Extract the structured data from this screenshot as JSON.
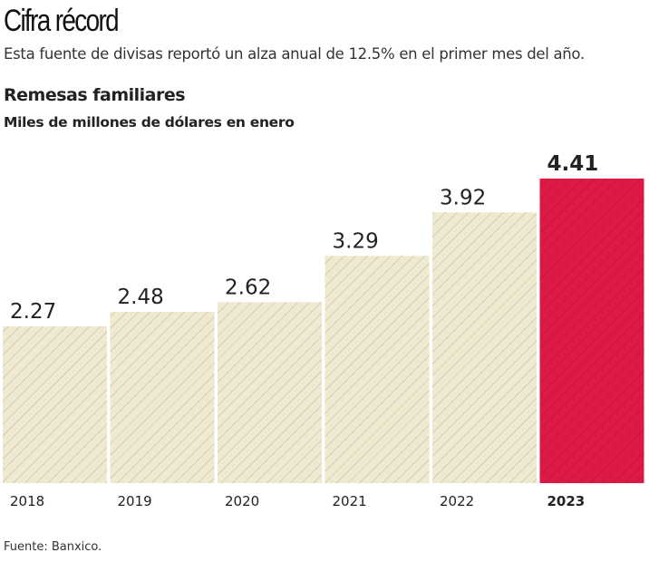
{
  "header": {
    "title": "Cifra récord",
    "subtitle": "Esta fuente de divisas reportó un alza anual de 12.5% en el primer mes del año."
  },
  "chart_data": {
    "type": "bar",
    "title": "Remesas familiares",
    "subtitle": "Miles de millones de dólares en enero",
    "categories": [
      "2018",
      "2019",
      "2020",
      "2021",
      "2022",
      "2023"
    ],
    "values": [
      2.27,
      2.48,
      2.62,
      3.29,
      3.92,
      4.41
    ],
    "value_labels": [
      "2.27",
      "2.48",
      "2.62",
      "3.29",
      "3.92",
      "4.41"
    ],
    "highlight_index": 5,
    "colors": {
      "default": "#efe9cf",
      "highlight": "#dc1a45",
      "stripe": "#9a9a90"
    },
    "grid": false
  },
  "footer": {
    "source": "Fuente: Banxico."
  }
}
